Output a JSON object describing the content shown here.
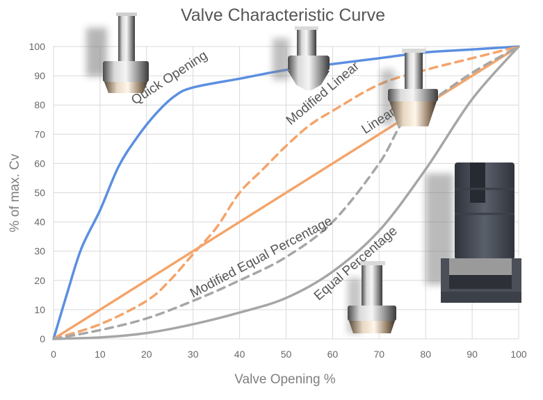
{
  "chart_data": {
    "type": "line",
    "title": "Valve Characteristic Curve",
    "xlabel": "Valve Opening %",
    "ylabel": "% of max. Cv",
    "xlim": [
      0,
      100
    ],
    "ylim": [
      0,
      100
    ],
    "xticks": [
      0,
      10,
      20,
      30,
      40,
      50,
      60,
      70,
      80,
      90,
      100
    ],
    "yticks": [
      0,
      10,
      20,
      30,
      40,
      50,
      60,
      70,
      80,
      90,
      100
    ],
    "grid": true,
    "legend": "none (series labelled directly on curves)",
    "series": [
      {
        "name": "Quick Opening",
        "color": "#5b8fe0",
        "dash": "solid",
        "x": [
          0,
          3,
          6,
          10,
          14,
          18,
          22,
          26,
          30,
          40,
          50,
          60,
          70,
          80,
          90,
          100
        ],
        "y": [
          0,
          16,
          31,
          44,
          59,
          69,
          77,
          83,
          86,
          89,
          92,
          94,
          96,
          98,
          99,
          100
        ]
      },
      {
        "name": "Modified Linear",
        "color": "#f4a46a",
        "dash": "dashed",
        "x": [
          0,
          10,
          20,
          25,
          30,
          35,
          40,
          45,
          50,
          55,
          60,
          70,
          80,
          90,
          100
        ],
        "y": [
          0,
          5,
          13,
          20,
          29,
          38,
          50,
          58,
          66,
          73,
          78,
          87,
          92,
          96,
          100
        ]
      },
      {
        "name": "Linear",
        "color": "#f4a46a",
        "dash": "solid",
        "x": [
          0,
          100
        ],
        "y": [
          0,
          100
        ]
      },
      {
        "name": "Modified Equal Percentage",
        "color": "#a6a6a6",
        "dash": "dashed",
        "x": [
          0,
          10,
          20,
          30,
          40,
          50,
          60,
          70,
          75,
          80,
          90,
          100
        ],
        "y": [
          0,
          3,
          7,
          13,
          20,
          28,
          40,
          60,
          74,
          80,
          91,
          100
        ]
      },
      {
        "name": "Equal Percentage",
        "color": "#a6a6a6",
        "dash": "solid",
        "x": [
          0,
          10,
          20,
          30,
          40,
          50,
          60,
          70,
          80,
          90,
          100
        ],
        "y": [
          0,
          0.5,
          2,
          5,
          9,
          14,
          23,
          37,
          58,
          82,
          100
        ]
      }
    ],
    "annotations": [
      {
        "series": "Quick Opening",
        "text": "Quick Opening",
        "at_x": 17.5,
        "at_y": 80
      },
      {
        "series": "Modified Linear",
        "text": "Modified Linear",
        "at_x": 51,
        "at_y": 73
      },
      {
        "series": "Linear",
        "text": "Linear",
        "at_x": 67,
        "at_y": 70
      },
      {
        "series": "Modified Equal Percentage",
        "text": "Modified Equal Percentage",
        "at_x": 30,
        "at_y": 14
      },
      {
        "series": "Equal Percentage",
        "text": "Equal Percentage",
        "at_x": 57,
        "at_y": 13
      }
    ]
  },
  "icons": {
    "valve_plug_quick_opening": "valve-plug-icon",
    "valve_plug_modified_linear": "valve-plug-icon",
    "valve_plug_linear": "valve-plug-icon",
    "valve_plug_equal_percentage": "valve-plug-icon",
    "valve_cage_cutaway": "valve-cage-cross-section-icon"
  }
}
